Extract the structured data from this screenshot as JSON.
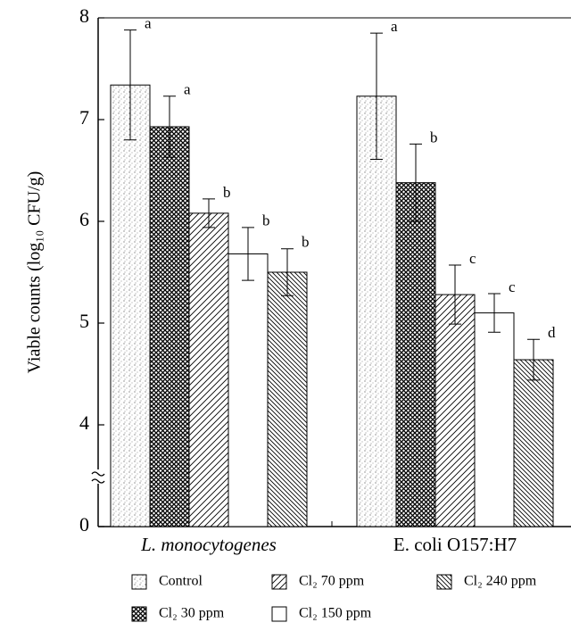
{
  "chart_data": {
    "type": "bar",
    "y_label": "Viable counts (log₁₀ CFU/g)",
    "categories": [
      "L. monocytogenes",
      "E. coli O157:H7"
    ],
    "ylim": [
      0,
      8
    ],
    "yticks": [
      0,
      4,
      5,
      6,
      7,
      8
    ],
    "y_break": [
      0,
      4
    ],
    "series": [
      {
        "name": "Control",
        "color": "#ffffff",
        "pattern": "stipple",
        "values": [
          7.34,
          7.23
        ],
        "errors": [
          0.54,
          0.62
        ],
        "labels": [
          "a",
          "a"
        ]
      },
      {
        "name": "Cl₂ 30 ppm",
        "color": "#ffffff",
        "pattern": "crosshatch",
        "values": [
          6.93,
          6.38
        ],
        "errors": [
          0.3,
          0.38
        ],
        "labels": [
          "a",
          "b"
        ]
      },
      {
        "name": "Cl₂ 70 ppm",
        "color": "#ffffff",
        "pattern": "forward-diagonal",
        "values": [
          6.08,
          5.28
        ],
        "errors": [
          0.14,
          0.29
        ],
        "labels": [
          "b",
          "c"
        ]
      },
      {
        "name": "Cl₂ 150 ppm",
        "color": "#ffffff",
        "pattern": "none",
        "values": [
          5.68,
          5.1
        ],
        "errors": [
          0.26,
          0.19
        ],
        "labels": [
          "b",
          "c"
        ]
      },
      {
        "name": "Cl₂ 240 ppm",
        "color": "#ffffff",
        "pattern": "back-diagonal",
        "values": [
          5.5,
          4.64
        ],
        "errors": [
          0.23,
          0.2
        ],
        "labels": [
          "b",
          "d"
        ]
      }
    ]
  }
}
